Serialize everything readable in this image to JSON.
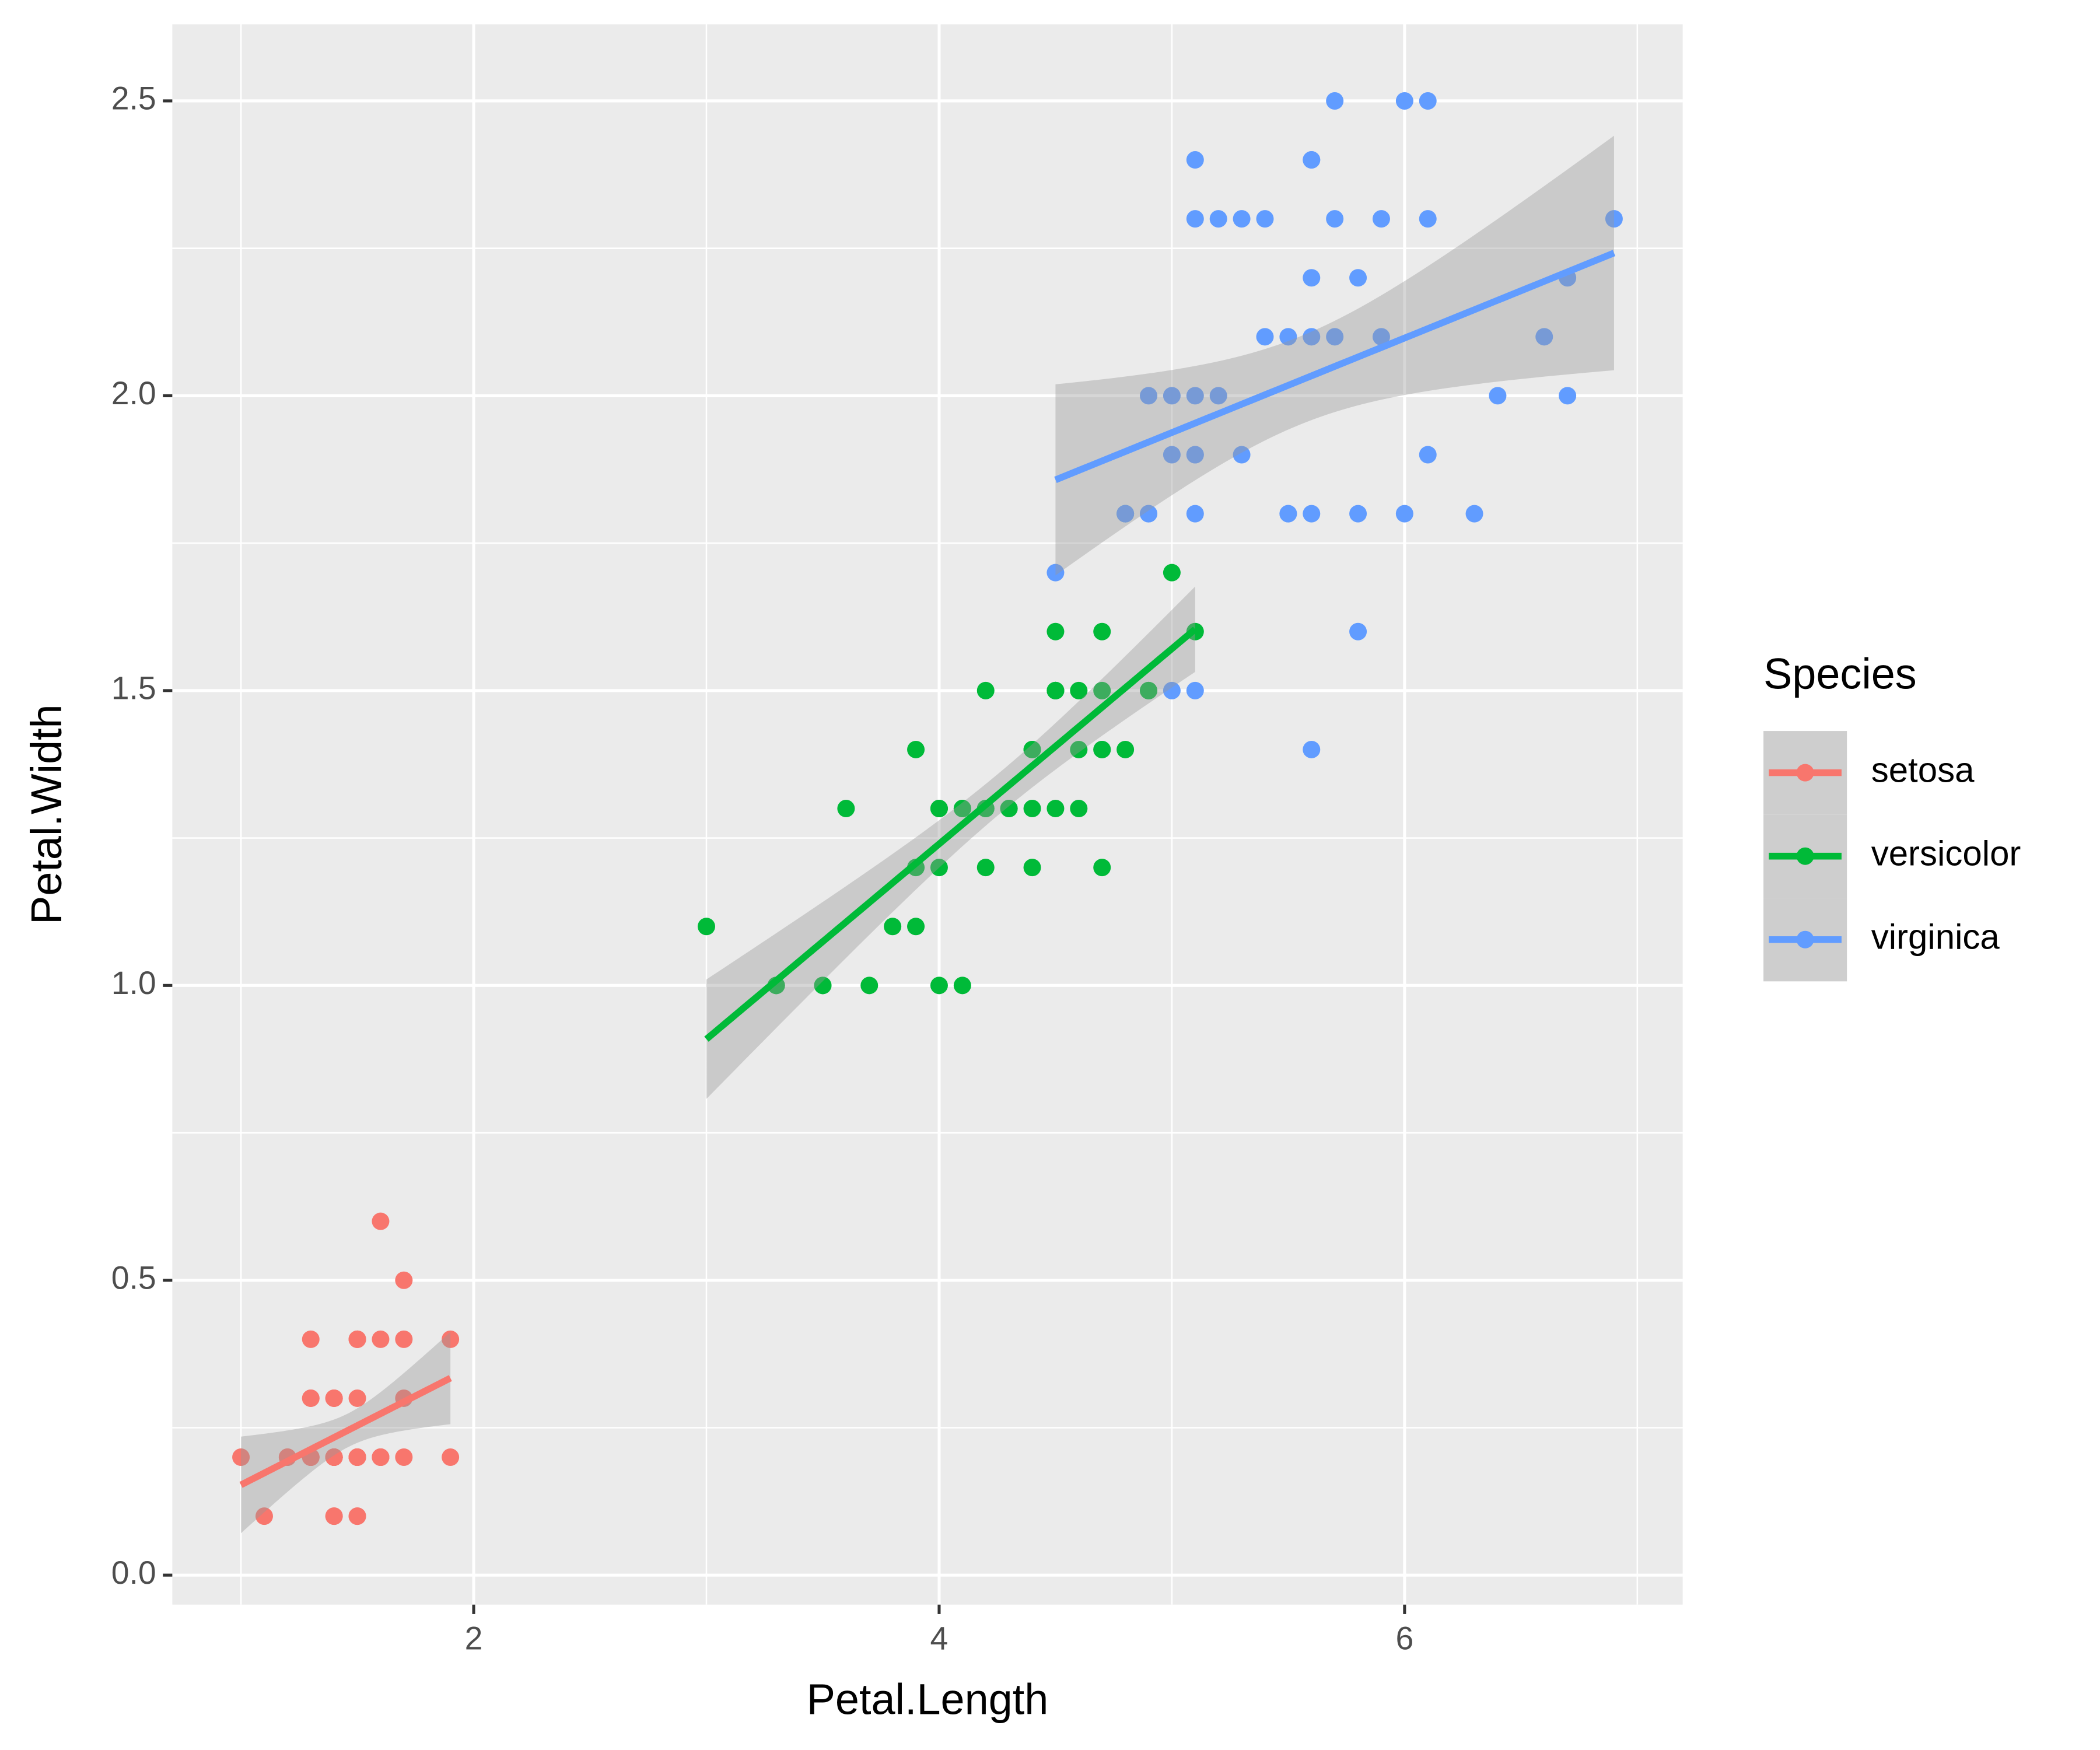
{
  "chart_data": {
    "type": "scatter",
    "x_label": "Petal.Length",
    "y_label": "Petal.Width",
    "legend_title": "Species",
    "xlim": [
      0.705,
      7.195
    ],
    "ylim": [
      -0.05,
      2.63
    ],
    "xticks": [
      2,
      4,
      6
    ],
    "yticks": [
      {
        "value": 0,
        "label": "0.0"
      },
      0.5,
      {
        "value": 1,
        "label": "1.0"
      },
      1.5,
      {
        "value": 2,
        "label": "2.0"
      },
      2.5
    ],
    "grid": true,
    "trendline": "lm",
    "legend": "right",
    "series": [
      {
        "name": "setosa",
        "color": "#F8766D",
        "x": [
          1.4,
          1.4,
          1.3,
          1.5,
          1.4,
          1.7,
          1.4,
          1.5,
          1.4,
          1.5,
          1.5,
          1.6,
          1.4,
          1.1,
          1.2,
          1.5,
          1.3,
          1.4,
          1.7,
          1.5,
          1.7,
          1.5,
          1.0,
          1.7,
          1.9,
          1.6,
          1.6,
          1.5,
          1.4,
          1.6,
          1.6,
          1.5,
          1.5,
          1.4,
          1.5,
          1.2,
          1.3,
          1.4,
          1.3,
          1.5,
          1.3,
          1.3,
          1.3,
          1.6,
          1.9,
          1.4,
          1.6,
          1.4,
          1.5,
          1.4
        ],
        "values": [
          0.2,
          0.2,
          0.2,
          0.2,
          0.2,
          0.4,
          0.3,
          0.2,
          0.2,
          0.1,
          0.2,
          0.2,
          0.1,
          0.1,
          0.2,
          0.4,
          0.4,
          0.3,
          0.3,
          0.3,
          0.2,
          0.4,
          0.2,
          0.5,
          0.2,
          0.2,
          0.4,
          0.2,
          0.2,
          0.2,
          0.2,
          0.4,
          0.1,
          0.2,
          0.2,
          0.2,
          0.2,
          0.1,
          0.2,
          0.2,
          0.3,
          0.3,
          0.2,
          0.6,
          0.4,
          0.3,
          0.2,
          0.2,
          0.2,
          0.2
        ]
      },
      {
        "name": "versicolor",
        "color": "#00BA38",
        "x": [
          4.7,
          4.5,
          4.9,
          4.0,
          4.6,
          4.5,
          4.7,
          3.3,
          4.6,
          3.9,
          3.5,
          4.2,
          4.0,
          4.7,
          3.6,
          4.4,
          4.5,
          4.1,
          4.5,
          3.9,
          4.8,
          4.0,
          4.9,
          4.7,
          4.3,
          4.4,
          4.8,
          5.0,
          4.5,
          3.5,
          3.8,
          3.7,
          3.9,
          5.1,
          4.5,
          4.5,
          4.7,
          4.4,
          4.1,
          4.0,
          4.4,
          4.6,
          4.0,
          3.3,
          4.2,
          4.2,
          4.2,
          4.3,
          3.0,
          4.1
        ],
        "values": [
          1.4,
          1.5,
          1.5,
          1.3,
          1.5,
          1.3,
          1.6,
          1.0,
          1.3,
          1.4,
          1.0,
          1.5,
          1.0,
          1.4,
          1.3,
          1.4,
          1.5,
          1.0,
          1.5,
          1.1,
          1.8,
          1.3,
          1.5,
          1.2,
          1.3,
          1.4,
          1.4,
          1.7,
          1.5,
          1.0,
          1.1,
          1.0,
          1.2,
          1.6,
          1.5,
          1.6,
          1.5,
          1.3,
          1.3,
          1.3,
          1.2,
          1.4,
          1.2,
          1.0,
          1.3,
          1.2,
          1.3,
          1.3,
          1.1,
          1.3
        ]
      },
      {
        "name": "virginica",
        "color": "#619CFF",
        "x": [
          6.0,
          5.1,
          5.9,
          5.6,
          5.8,
          6.6,
          4.5,
          6.3,
          5.8,
          6.1,
          5.1,
          5.3,
          5.5,
          5.0,
          5.1,
          5.3,
          5.5,
          6.7,
          6.9,
          5.0,
          5.7,
          4.9,
          6.7,
          4.9,
          5.7,
          6.0,
          4.8,
          4.9,
          5.6,
          5.8,
          6.1,
          6.4,
          5.6,
          5.1,
          5.6,
          6.1,
          5.6,
          5.5,
          4.8,
          5.4,
          5.6,
          5.1,
          5.1,
          5.9,
          5.7,
          5.2,
          5.0,
          5.2,
          5.4,
          5.1
        ],
        "values": [
          2.5,
          1.9,
          2.1,
          1.8,
          2.2,
          2.1,
          1.7,
          1.8,
          1.8,
          2.5,
          2.0,
          1.9,
          2.1,
          2.0,
          2.4,
          2.3,
          1.8,
          2.2,
          2.3,
          1.5,
          2.3,
          2.0,
          2.0,
          1.8,
          2.1,
          1.8,
          1.8,
          1.8,
          2.1,
          1.6,
          1.9,
          2.0,
          2.2,
          1.5,
          1.4,
          2.3,
          2.4,
          1.8,
          1.8,
          2.1,
          2.4,
          2.3,
          1.9,
          2.3,
          2.5,
          2.3,
          1.9,
          2.0,
          2.3,
          1.8
        ]
      }
    ]
  }
}
